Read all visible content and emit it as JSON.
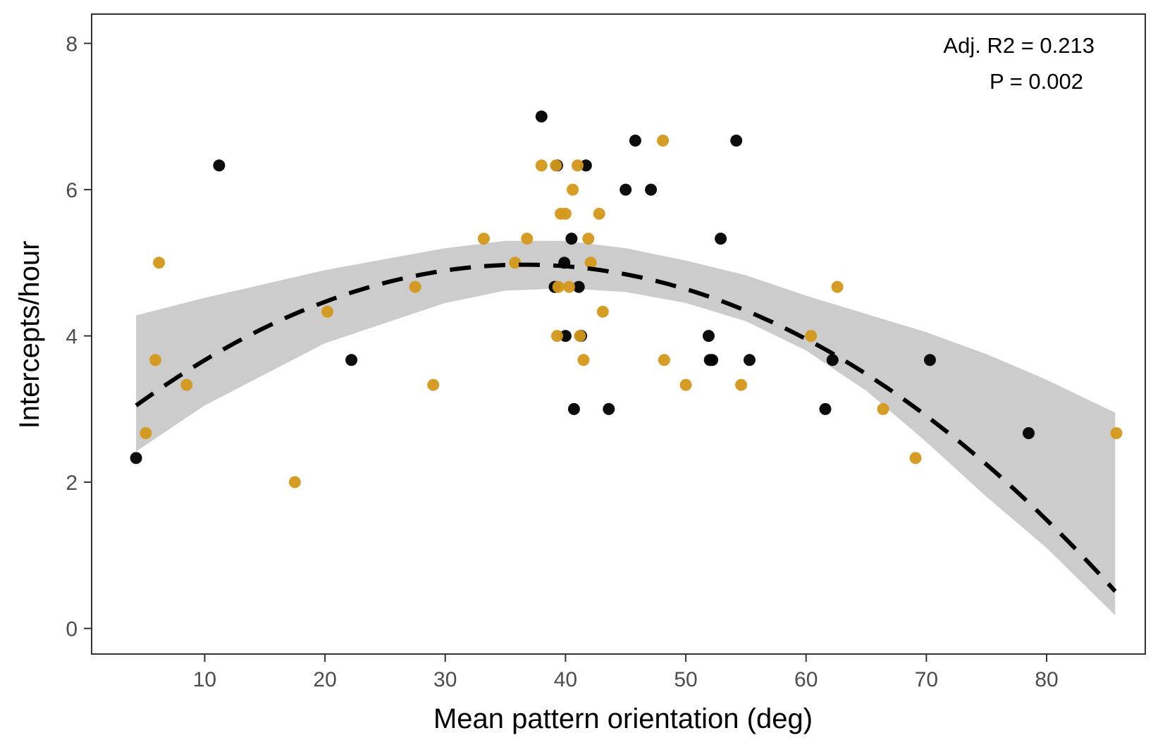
{
  "chart_data": {
    "type": "scatter",
    "xlabel": "Mean pattern orientation (deg)",
    "ylabel": "Intercepts/hour",
    "xlim": [
      0.6,
      88.2
    ],
    "ylim": [
      -0.35,
      8.4
    ],
    "x_ticks": [
      10,
      20,
      30,
      40,
      50,
      60,
      70,
      80
    ],
    "y_ticks": [
      0,
      2,
      4,
      6,
      8
    ],
    "grid": false,
    "annotations": [
      "Adj. R2 =  0.213",
      "P = 0.002"
    ],
    "fit": {
      "type": "quadratic",
      "style": "dashed",
      "color": "#000000",
      "x_range": [
        4.3,
        85.7
      ],
      "coefficients": {
        "a": -0.00185,
        "b": 0.1353,
        "c": 2.5
      },
      "ci_band_color": "#cccccc",
      "ci": [
        {
          "x": 4.3,
          "lower": 2.42,
          "upper": 4.28
        },
        {
          "x": 10,
          "lower": 3.05,
          "upper": 4.52
        },
        {
          "x": 20,
          "lower": 3.9,
          "upper": 4.9
        },
        {
          "x": 30,
          "lower": 4.45,
          "upper": 5.2
        },
        {
          "x": 35,
          "lower": 4.62,
          "upper": 5.3
        },
        {
          "x": 40,
          "lower": 4.65,
          "upper": 5.3
        },
        {
          "x": 45,
          "lower": 4.6,
          "upper": 5.2
        },
        {
          "x": 50,
          "lower": 4.45,
          "upper": 5.03
        },
        {
          "x": 55,
          "lower": 4.2,
          "upper": 4.83
        },
        {
          "x": 60,
          "lower": 3.8,
          "upper": 4.55
        },
        {
          "x": 65,
          "lower": 3.25,
          "upper": 4.3
        },
        {
          "x": 70,
          "lower": 2.55,
          "upper": 4.05
        },
        {
          "x": 75,
          "lower": 1.8,
          "upper": 3.75
        },
        {
          "x": 80,
          "lower": 1.1,
          "upper": 3.4
        },
        {
          "x": 85.7,
          "lower": 0.18,
          "upper": 2.95
        }
      ]
    },
    "series": [
      {
        "color": "#000000",
        "points": [
          {
            "x": 4.3,
            "y": 2.33
          },
          {
            "x": 11.2,
            "y": 6.33
          },
          {
            "x": 22.2,
            "y": 3.67
          },
          {
            "x": 38.0,
            "y": 7.0
          },
          {
            "x": 39.1,
            "y": 4.67
          },
          {
            "x": 39.3,
            "y": 6.33
          },
          {
            "x": 39.9,
            "y": 5.0
          },
          {
            "x": 40.0,
            "y": 4.0
          },
          {
            "x": 40.5,
            "y": 5.33
          },
          {
            "x": 40.7,
            "y": 3.0
          },
          {
            "x": 41.1,
            "y": 4.67
          },
          {
            "x": 41.3,
            "y": 4.0
          },
          {
            "x": 41.7,
            "y": 6.33
          },
          {
            "x": 43.6,
            "y": 3.0
          },
          {
            "x": 45.0,
            "y": 6.0
          },
          {
            "x": 45.8,
            "y": 6.67
          },
          {
            "x": 47.1,
            "y": 6.0
          },
          {
            "x": 51.9,
            "y": 4.0
          },
          {
            "x": 52.0,
            "y": 3.67
          },
          {
            "x": 52.2,
            "y": 3.67
          },
          {
            "x": 52.9,
            "y": 5.33
          },
          {
            "x": 54.2,
            "y": 6.67
          },
          {
            "x": 55.3,
            "y": 3.67
          },
          {
            "x": 61.6,
            "y": 3.0
          },
          {
            "x": 62.2,
            "y": 3.67
          },
          {
            "x": 70.3,
            "y": 3.67
          },
          {
            "x": 78.5,
            "y": 2.67
          }
        ]
      },
      {
        "color": "#d4981a",
        "points": [
          {
            "x": 5.1,
            "y": 2.67
          },
          {
            "x": 5.9,
            "y": 3.67
          },
          {
            "x": 6.2,
            "y": 5.0
          },
          {
            "x": 8.5,
            "y": 3.33
          },
          {
            "x": 17.5,
            "y": 2.0
          },
          {
            "x": 20.2,
            "y": 4.33
          },
          {
            "x": 27.5,
            "y": 4.67
          },
          {
            "x": 29.0,
            "y": 3.33
          },
          {
            "x": 33.2,
            "y": 5.33
          },
          {
            "x": 35.8,
            "y": 5.0
          },
          {
            "x": 36.8,
            "y": 5.33
          },
          {
            "x": 38.0,
            "y": 6.33
          },
          {
            "x": 39.2,
            "y": 6.33
          },
          {
            "x": 39.3,
            "y": 4.0
          },
          {
            "x": 39.4,
            "y": 4.67
          },
          {
            "x": 39.6,
            "y": 5.67
          },
          {
            "x": 40.0,
            "y": 5.67
          },
          {
            "x": 40.3,
            "y": 4.67
          },
          {
            "x": 40.6,
            "y": 6.0
          },
          {
            "x": 41.0,
            "y": 6.33
          },
          {
            "x": 41.2,
            "y": 4.0
          },
          {
            "x": 41.5,
            "y": 3.67
          },
          {
            "x": 41.9,
            "y": 5.33
          },
          {
            "x": 42.1,
            "y": 5.0
          },
          {
            "x": 42.8,
            "y": 5.67
          },
          {
            "x": 43.1,
            "y": 4.33
          },
          {
            "x": 48.1,
            "y": 6.67
          },
          {
            "x": 48.2,
            "y": 3.67
          },
          {
            "x": 50.0,
            "y": 3.33
          },
          {
            "x": 54.6,
            "y": 3.33
          },
          {
            "x": 60.4,
            "y": 4.0
          },
          {
            "x": 62.6,
            "y": 4.67
          },
          {
            "x": 66.4,
            "y": 3.0
          },
          {
            "x": 69.1,
            "y": 2.33
          },
          {
            "x": 85.8,
            "y": 2.67
          }
        ]
      }
    ]
  }
}
